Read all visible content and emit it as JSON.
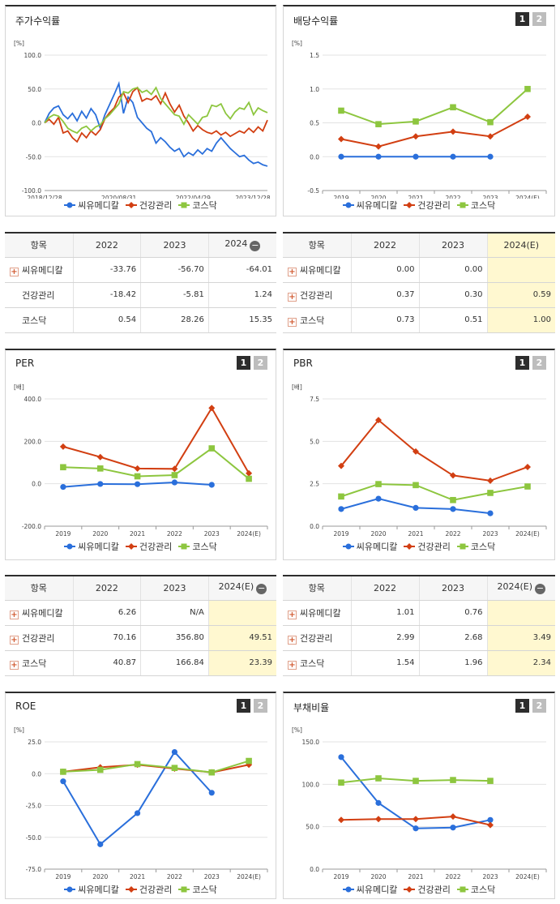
{
  "colors": {
    "series1": "#2a6fdb",
    "series2": "#d23f12",
    "series3": "#8dc63f"
  },
  "buttons": {
    "one": "1",
    "two": "2"
  },
  "legend": [
    "씨유메디칼",
    "건강관리",
    "코스닥"
  ],
  "chart_data": [
    {
      "id": "stock",
      "type": "line",
      "title": "주가수익률",
      "unit": "[%]",
      "ylim": [
        -100,
        100
      ],
      "yticks": [
        "100.0",
        "50.0",
        "0.0",
        "-50.0",
        "-100.0"
      ],
      "xticks": [
        "2018/12/28",
        "2020/08/31",
        "2022/04/29",
        "2023/12/28"
      ],
      "series": [
        {
          "name": "씨유메디칼",
          "values": [
            0,
            14,
            22,
            25,
            12,
            6,
            14,
            3,
            17,
            7,
            21,
            12,
            -8,
            12,
            27,
            42,
            58,
            14,
            38,
            30,
            8,
            0,
            -8,
            -13,
            -30,
            -22,
            -28,
            -36,
            -42,
            -38,
            -50,
            -44,
            -48,
            -40,
            -46,
            -38,
            -42,
            -30,
            -22,
            -30,
            -38,
            -44,
            -50,
            -48,
            -55,
            -60,
            -58,
            -62,
            -64
          ]
        },
        {
          "name": "건강관리",
          "values": [
            0,
            5,
            -2,
            8,
            -15,
            -12,
            -22,
            -28,
            -15,
            -22,
            -12,
            -18,
            -10,
            6,
            15,
            22,
            38,
            44,
            30,
            46,
            52,
            32,
            36,
            34,
            40,
            28,
            44,
            28,
            16,
            26,
            10,
            0,
            -12,
            -4,
            -10,
            -14,
            -16,
            -12,
            -18,
            -14,
            -20,
            -16,
            -12,
            -15,
            -8,
            -14,
            -6,
            -12,
            4
          ]
        },
        {
          "name": "코스닥",
          "values": [
            0,
            8,
            12,
            10,
            2,
            -8,
            -12,
            -15,
            -8,
            -5,
            -12,
            -6,
            -3,
            6,
            12,
            20,
            28,
            46,
            44,
            50,
            52,
            45,
            48,
            42,
            52,
            36,
            28,
            20,
            12,
            10,
            -2,
            12,
            5,
            -2,
            8,
            10,
            26,
            24,
            28,
            14,
            6,
            16,
            22,
            20,
            30,
            12,
            22,
            18,
            15
          ]
        }
      ]
    },
    {
      "id": "dividend",
      "type": "line",
      "title": "배당수익률",
      "unit": "[%]",
      "ylim": [
        -0.5,
        1.5
      ],
      "yticks": [
        "1.5",
        "1.0",
        "0.5",
        "0.0",
        "-0.5"
      ],
      "categories": [
        "2019",
        "2020",
        "2021",
        "2022",
        "2023",
        "2024(E)"
      ],
      "series": [
        {
          "name": "씨유메디칼",
          "values": [
            0.0,
            0.0,
            0.0,
            0.0,
            0.0,
            null
          ]
        },
        {
          "name": "건강관리",
          "values": [
            0.26,
            0.15,
            0.3,
            0.37,
            0.3,
            0.59
          ]
        },
        {
          "name": "코스닥",
          "values": [
            0.68,
            0.48,
            0.52,
            0.73,
            0.51,
            1.0
          ]
        }
      ]
    },
    {
      "id": "per",
      "type": "line",
      "title": "PER",
      "unit": "[배]",
      "ylim": [
        -200,
        400
      ],
      "yticks": [
        "400.0",
        "200.0",
        "0.0",
        "-200.0"
      ],
      "categories": [
        "2019",
        "2020",
        "2021",
        "2022",
        "2023",
        "2024(E)"
      ],
      "series": [
        {
          "name": "씨유메디칼",
          "values": [
            -15,
            -1,
            -2,
            6.26,
            -5,
            null
          ]
        },
        {
          "name": "건강관리",
          "values": [
            175,
            126,
            72,
            70.16,
            356.8,
            49.51
          ]
        },
        {
          "name": "코스닥",
          "values": [
            78,
            72,
            35,
            40.87,
            166.84,
            23.39
          ]
        }
      ]
    },
    {
      "id": "pbr",
      "type": "line",
      "title": "PBR",
      "unit": "[배]",
      "ylim": [
        0,
        7.5
      ],
      "yticks": [
        "7.5",
        "5.0",
        "2.5",
        "0.0"
      ],
      "categories": [
        "2019",
        "2020",
        "2021",
        "2022",
        "2023",
        "2024(E)"
      ],
      "series": [
        {
          "name": "씨유메디칼",
          "values": [
            1.01,
            1.62,
            1.08,
            1.01,
            0.76,
            null
          ]
        },
        {
          "name": "건강관리",
          "values": [
            3.55,
            6.25,
            4.4,
            2.99,
            2.68,
            3.49
          ]
        },
        {
          "name": "코스닥",
          "values": [
            1.75,
            2.48,
            2.42,
            1.54,
            1.96,
            2.34
          ]
        }
      ]
    },
    {
      "id": "roe",
      "type": "line",
      "title": "ROE",
      "unit": "[%]",
      "ylim": [
        -75,
        25
      ],
      "yticks": [
        "25.0",
        "0.0",
        "-25.0",
        "-50.0",
        "-75.0"
      ],
      "categories": [
        "2019",
        "2020",
        "2021",
        "2022",
        "2023",
        "2024(E)"
      ],
      "series": [
        {
          "name": "씨유메디칼",
          "values": [
            -6,
            -55.5,
            -31,
            17,
            -15,
            null
          ]
        },
        {
          "name": "건강관리",
          "values": [
            1.5,
            5,
            7,
            4,
            1,
            7
          ]
        },
        {
          "name": "코스닥",
          "values": [
            1.5,
            3,
            7.5,
            4.5,
            1,
            10
          ]
        }
      ]
    },
    {
      "id": "debt",
      "type": "line",
      "title": "부채비율",
      "unit": "[%]",
      "ylim": [
        0,
        150
      ],
      "yticks": [
        "150.0",
        "100.0",
        "50.0",
        "0.0"
      ],
      "categories": [
        "2019",
        "2020",
        "2021",
        "2022",
        "2023",
        "2024(E)"
      ],
      "series": [
        {
          "name": "씨유메디칼",
          "values": [
            132,
            78,
            48,
            49,
            58,
            null
          ]
        },
        {
          "name": "건강관리",
          "values": [
            58,
            59,
            59,
            62,
            52,
            null
          ]
        },
        {
          "name": "코스닥",
          "values": [
            102,
            107,
            104,
            105,
            104,
            null
          ]
        }
      ]
    }
  ],
  "tables": [
    {
      "id": "t-stock",
      "header": [
        "항목",
        "2022",
        "2023",
        "2024"
      ],
      "rows": [
        {
          "label": "씨유메디칼",
          "plus": true,
          "cells": [
            "-33.76",
            "-56.70",
            "-64.01"
          ]
        },
        {
          "label": "건강관리",
          "plus": false,
          "cells": [
            "-18.42",
            "-5.81",
            "1.24"
          ]
        },
        {
          "label": "코스닥",
          "plus": false,
          "cells": [
            "0.54",
            "28.26",
            "15.35"
          ]
        }
      ]
    },
    {
      "id": "t-div",
      "header": [
        "항목",
        "2022",
        "2023",
        "2024(E)"
      ],
      "rows": [
        {
          "label": "씨유메디칼",
          "plus": true,
          "cells": [
            "0.00",
            "0.00",
            ""
          ]
        },
        {
          "label": "건강관리",
          "plus": true,
          "cells": [
            "0.37",
            "0.30",
            "0.59"
          ]
        },
        {
          "label": "코스닥",
          "plus": true,
          "cells": [
            "0.73",
            "0.51",
            "1.00"
          ]
        }
      ]
    },
    {
      "id": "t-per",
      "header": [
        "항목",
        "2022",
        "2023",
        "2024(E)"
      ],
      "rows": [
        {
          "label": "씨유메디칼",
          "plus": true,
          "cells": [
            "6.26",
            "N/A",
            ""
          ]
        },
        {
          "label": "건강관리",
          "plus": true,
          "cells": [
            "70.16",
            "356.80",
            "49.51"
          ]
        },
        {
          "label": "코스닥",
          "plus": true,
          "cells": [
            "40.87",
            "166.84",
            "23.39"
          ]
        }
      ]
    },
    {
      "id": "t-pbr",
      "header": [
        "항목",
        "2022",
        "2023",
        "2024(E)"
      ],
      "rows": [
        {
          "label": "씨유메디칼",
          "plus": true,
          "cells": [
            "1.01",
            "0.76",
            ""
          ]
        },
        {
          "label": "건강관리",
          "plus": true,
          "cells": [
            "2.99",
            "2.68",
            "3.49"
          ]
        },
        {
          "label": "코스닥",
          "plus": true,
          "cells": [
            "1.54",
            "1.96",
            "2.34"
          ]
        }
      ]
    }
  ]
}
